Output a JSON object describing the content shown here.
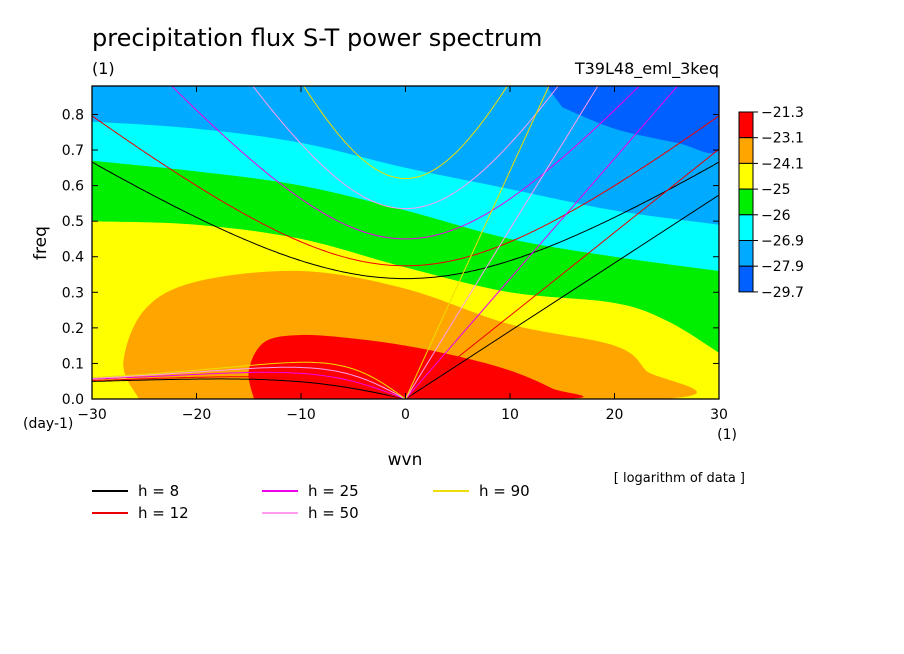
{
  "chart_data": {
    "type": "heatmap",
    "title": "precipitation flux S-T power spectrum",
    "units_left": "(1)",
    "subtitle_right": "T39L48_eml_3keq",
    "xlabel": "wvn",
    "ylabel": "freq",
    "x_units": "(1)",
    "y_units": "(day-1)",
    "xlim": [
      -30,
      30
    ],
    "ylim": [
      0,
      0.88
    ],
    "x_ticks": [
      {
        "value": -30,
        "label": "−30"
      },
      {
        "value": -20,
        "label": "−20"
      },
      {
        "value": -10,
        "label": "−10"
      },
      {
        "value": 0,
        "label": "0"
      },
      {
        "value": 10,
        "label": "10"
      },
      {
        "value": 20,
        "label": "20"
      },
      {
        "value": 30,
        "label": "30"
      }
    ],
    "y_ticks": [
      {
        "value": 0.0,
        "label": "0.0"
      },
      {
        "value": 0.1,
        "label": "0.1"
      },
      {
        "value": 0.2,
        "label": "0.2"
      },
      {
        "value": 0.3,
        "label": "0.3"
      },
      {
        "value": 0.4,
        "label": "0.4"
      },
      {
        "value": 0.5,
        "label": "0.5"
      },
      {
        "value": 0.6,
        "label": "0.6"
      },
      {
        "value": 0.7,
        "label": "0.7"
      },
      {
        "value": 0.8,
        "label": "0.8"
      }
    ],
    "note": "[ logarithm of data ]",
    "colorbar": {
      "labels": [
        "−21.3",
        "−23.1",
        "−24.1",
        "−25",
        "−26",
        "−26.9",
        "−27.9",
        "−29.7"
      ],
      "colors": [
        "#ff0000",
        "#ffa500",
        "#ffff00",
        "#00ee00",
        "#00ffff",
        "#00aaff",
        "#0060ff"
      ]
    },
    "bands": [
      {
        "color": "#0060ff",
        "region": [
          [
            13.5,
            0.88
          ],
          [
            30,
            0.88
          ],
          [
            30,
            0.7
          ],
          [
            26,
            0.72
          ],
          [
            20,
            0.76
          ],
          [
            15,
            0.82
          ]
        ]
      },
      {
        "color": "#00ffff",
        "boundary": [
          [
            -30,
            0.78
          ],
          [
            -20,
            0.76
          ],
          [
            -10,
            0.72
          ],
          [
            0,
            0.65
          ],
          [
            10,
            0.59
          ],
          [
            20,
            0.53
          ],
          [
            30,
            0.49
          ]
        ]
      },
      {
        "color": "#00ee00",
        "boundary": [
          [
            -30,
            0.67
          ],
          [
            -20,
            0.64
          ],
          [
            -10,
            0.6
          ],
          [
            0,
            0.53
          ],
          [
            10,
            0.45
          ],
          [
            20,
            0.4
          ],
          [
            30,
            0.36
          ]
        ]
      },
      {
        "color": "#ffff00",
        "boundary": [
          [
            -30,
            0.5
          ],
          [
            -20,
            0.49
          ],
          [
            -10,
            0.45
          ],
          [
            0,
            0.37
          ],
          [
            10,
            0.3
          ],
          [
            20,
            0.27
          ],
          [
            25,
            0.22
          ],
          [
            30,
            0.13
          ]
        ]
      },
      {
        "color": "#ffa500",
        "region": [
          [
            -25.5,
            0
          ],
          [
            -27,
            0.1
          ],
          [
            -25,
            0.25
          ],
          [
            -20,
            0.33
          ],
          [
            -10,
            0.36
          ],
          [
            0,
            0.31
          ],
          [
            10,
            0.21
          ],
          [
            20,
            0.15
          ],
          [
            23,
            0.08
          ],
          [
            24.5,
            0
          ],
          [
            -25.5,
            0
          ]
        ]
      },
      {
        "color": "#ff0000",
        "region": [
          [
            -14.5,
            0
          ],
          [
            -15,
            0.08
          ],
          [
            -13.5,
            0.16
          ],
          [
            -10,
            0.18
          ],
          [
            -5,
            0.17
          ],
          [
            0,
            0.15
          ],
          [
            5,
            0.12
          ],
          [
            10,
            0.08
          ],
          [
            14,
            0.03
          ],
          [
            15,
            0
          ],
          [
            -14.5,
            0
          ]
        ]
      }
    ],
    "series": [
      {
        "name": "h =  8",
        "h": 8,
        "color": "#000000"
      },
      {
        "name": "h = 12",
        "h": 12,
        "color": "#ee0000"
      },
      {
        "name": "h = 25",
        "h": 25,
        "color": "#ee00ee"
      },
      {
        "name": "h = 50",
        "h": 50,
        "color": "#ff9cf0"
      },
      {
        "name": "h = 90",
        "h": 90,
        "color": "#eedd00"
      }
    ],
    "legend_placement": "bottom",
    "grid": false
  }
}
